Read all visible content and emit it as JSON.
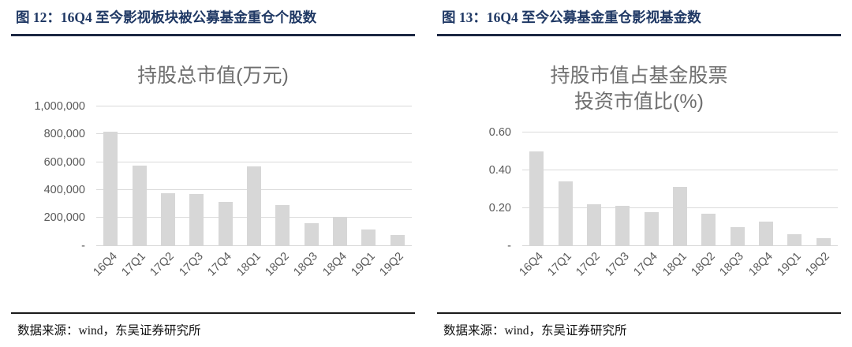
{
  "theme": {
    "page_bg": "#ffffff",
    "header_text": "#1f3864",
    "header_rule": "#1c2742",
    "source_rule": "#1a1a1a",
    "source_text": "#111111",
    "chart_title_text": "#6f6f6f",
    "axis_text": "#595959",
    "bar_fill": "#d7d7d7",
    "grid_line": "#dadada"
  },
  "panels": [
    {
      "figure_label": "图 12：16Q4 至今影视板块被公募基金重仓个股数",
      "source": "数据来源：wind，东吴证券研究所"
    },
    {
      "figure_label": "图 13：16Q4 至今公募基金重仓影视基金数",
      "source": "数据来源：wind，东吴证券研究所"
    }
  ],
  "chart_data": [
    {
      "type": "bar",
      "title": "持股总市值(万元)",
      "xlabel": "",
      "ylabel": "",
      "categories": [
        "16Q4",
        "17Q1",
        "17Q2",
        "17Q3",
        "17Q4",
        "18Q1",
        "18Q2",
        "18Q3",
        "18Q4",
        "19Q1",
        "19Q2"
      ],
      "values": [
        820000,
        575000,
        380000,
        370000,
        315000,
        570000,
        290000,
        160000,
        205000,
        120000,
        75000
      ],
      "ylim": [
        0,
        1000000
      ],
      "yticks": [
        {
          "value": 0,
          "label": "-"
        },
        {
          "value": 200000,
          "label": "200,000"
        },
        {
          "value": 400000,
          "label": "400,000"
        },
        {
          "value": 600000,
          "label": "600,000"
        },
        {
          "value": 800000,
          "label": "800,000"
        },
        {
          "value": 1000000,
          "label": "1,000,000"
        }
      ],
      "grid": true,
      "legend": "none"
    },
    {
      "type": "bar",
      "title": "持股市值占基金股票投资市值比(%)",
      "xlabel": "",
      "ylabel": "",
      "categories": [
        "16Q4",
        "17Q1",
        "17Q2",
        "17Q3",
        "17Q4",
        "18Q1",
        "18Q2",
        "18Q3",
        "18Q4",
        "19Q1",
        "19Q2"
      ],
      "values": [
        0.5,
        0.34,
        0.22,
        0.21,
        0.18,
        0.31,
        0.17,
        0.1,
        0.13,
        0.06,
        0.04
      ],
      "ylim": [
        0,
        0.6
      ],
      "yticks": [
        {
          "value": 0,
          "label": "-"
        },
        {
          "value": 0.2,
          "label": "0.20"
        },
        {
          "value": 0.4,
          "label": "0.40"
        },
        {
          "value": 0.6,
          "label": "0.60"
        }
      ],
      "grid": true,
      "legend": "none"
    }
  ]
}
